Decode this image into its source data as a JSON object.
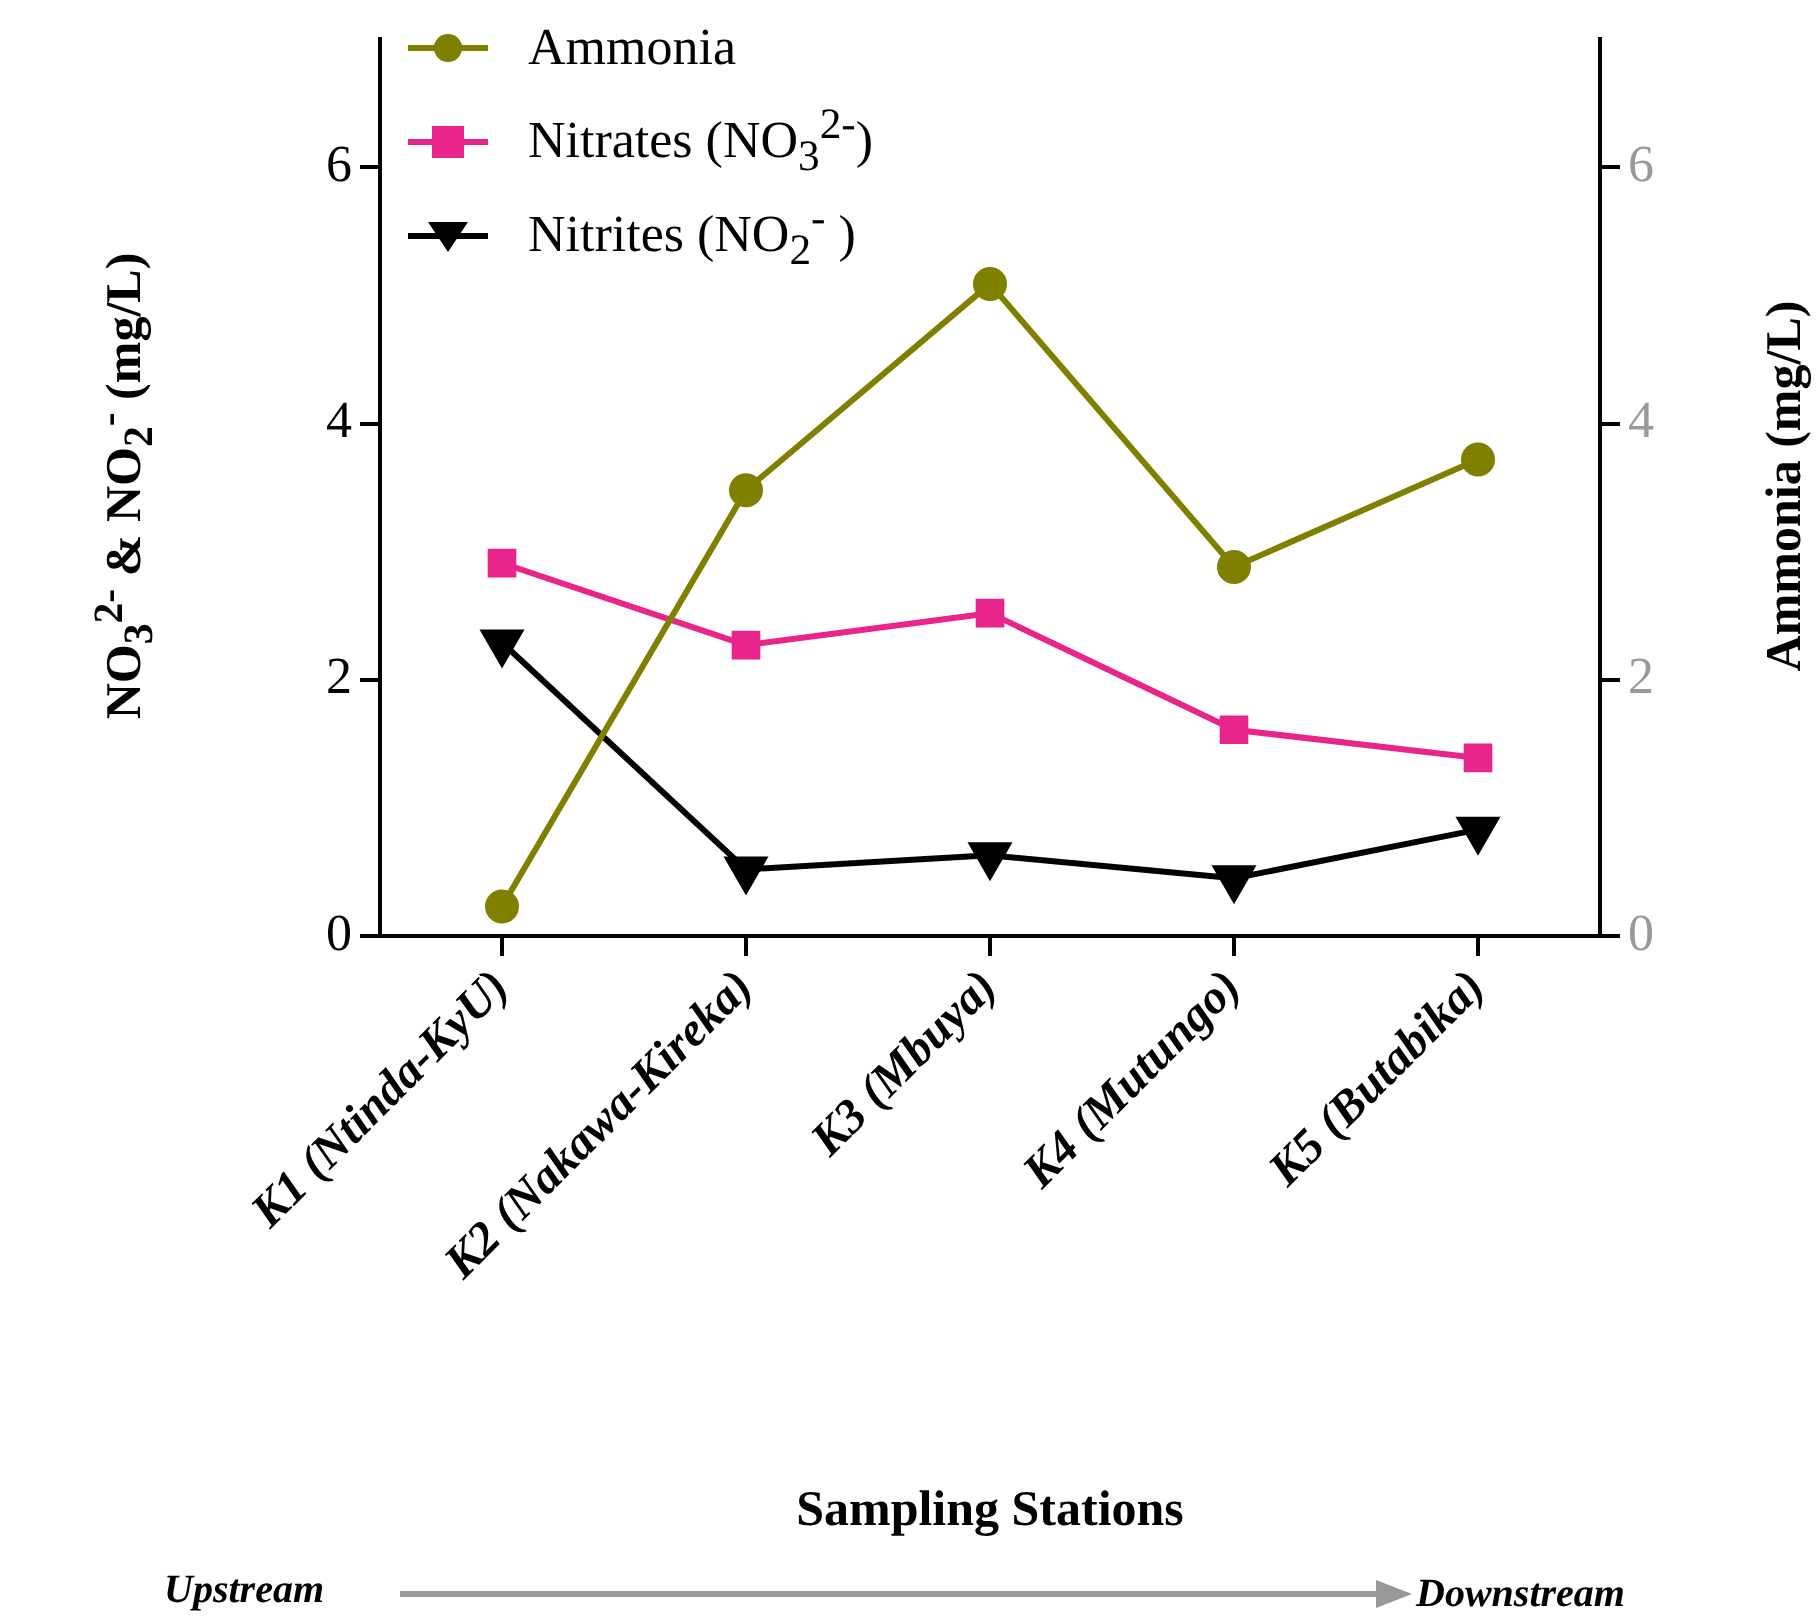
{
  "chart_data": {
    "type": "line",
    "xlabel": "Sampling Stations",
    "ylabel": "NO$_{3}$$^{2-}$ & NO$_{2}$$^{-}$ (mg/L)",
    "y2label": "Ammonia (mg/L)",
    "categories": [
      "K1 (Ntinda-KyU)",
      "K2 (Nakawa-Kireka)",
      "K3 (Mbuya)",
      "K4 (Mutungo)",
      "K5 (Butabika)"
    ],
    "series": [
      {
        "name": "Ammonia",
        "color": "#808000",
        "marker": "circle",
        "axis": "y2",
        "values": [
          0.23,
          3.48,
          5.09,
          2.88,
          3.72
        ]
      },
      {
        "name": "Nitrates (NO$_{3}$$^{2-}$)",
        "color": "#e8258a",
        "marker": "square",
        "values": [
          2.91,
          2.27,
          2.52,
          1.61,
          1.39
        ]
      },
      {
        "name": "Nitrites (NO$_{2}$$^{-}$ )",
        "color": "#000000",
        "marker": "triangle",
        "values": [
          2.29,
          0.52,
          0.63,
          0.45,
          0.83
        ]
      }
    ],
    "ylim": [
      0,
      7
    ],
    "yticks": [
      0,
      2,
      4,
      6
    ],
    "y2lim": [
      0,
      7
    ],
    "y2ticks": [
      0,
      2,
      4,
      6
    ],
    "grid": false,
    "legend": "top left",
    "line_style": "solid",
    "annotations": [
      "Upstream",
      "Downstream"
    ]
  }
}
